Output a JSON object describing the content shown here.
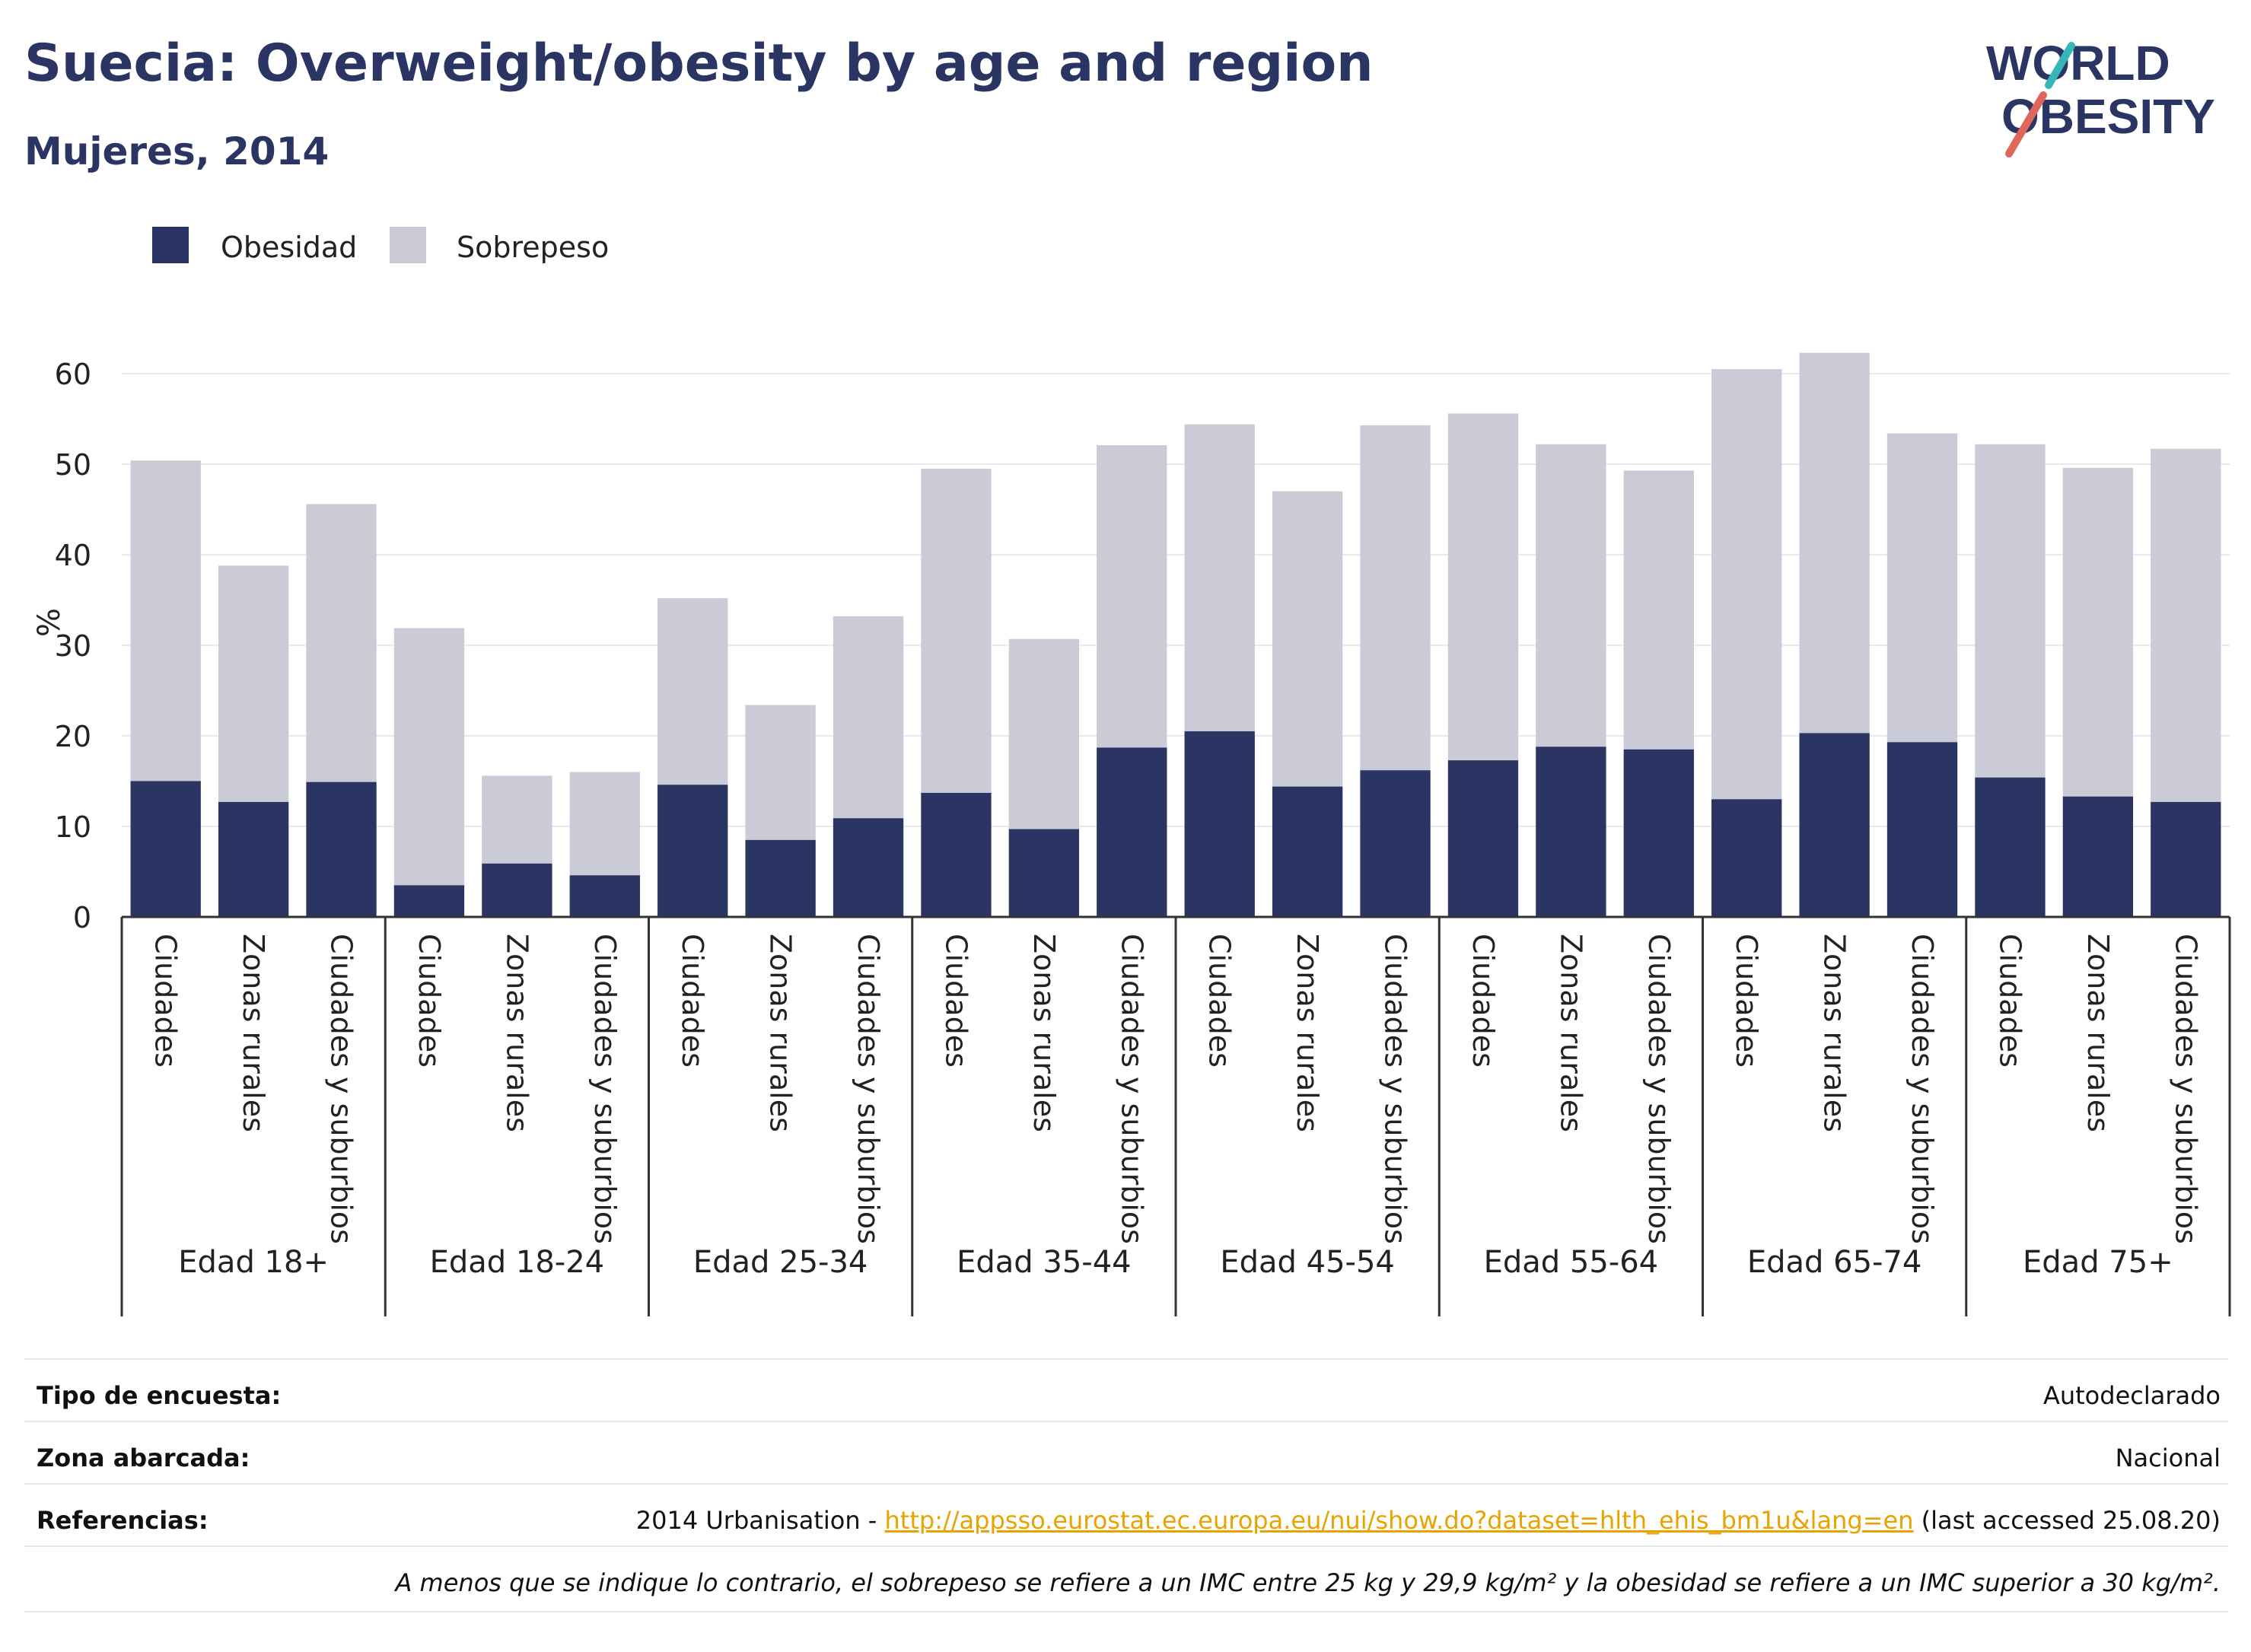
{
  "header": {
    "title": "Suecia: Overweight/obesity by age and region",
    "subtitle": "Mujeres, 2014",
    "logo_line1": "WORLD",
    "logo_line2": "OBESITY"
  },
  "colors": {
    "obesity": "#2b3563",
    "overweight": "#cacbd7",
    "text": "#222222",
    "title": "#2b3563",
    "link": "#e7a400"
  },
  "chart_data": {
    "type": "bar",
    "stacked": true,
    "ylabel": "%",
    "ylim": [
      0,
      65
    ],
    "yticks": [
      0,
      10,
      20,
      30,
      40,
      50,
      60
    ],
    "grid": true,
    "legend_position": "top-left",
    "groups": [
      "Edad 18+",
      "Edad 18-24",
      "Edad 25-34",
      "Edad 35-44",
      "Edad 45-54",
      "Edad 55-64",
      "Edad 65-74",
      "Edad 75+"
    ],
    "subcategories": [
      "Ciudades",
      "Zonas rurales",
      "Ciudades y suburbios"
    ],
    "series": [
      {
        "name": "Obesidad",
        "values": [
          15.0,
          12.7,
          14.9,
          3.5,
          5.9,
          4.6,
          14.6,
          8.5,
          10.9,
          13.7,
          9.7,
          18.7,
          20.5,
          14.4,
          16.2,
          17.3,
          18.8,
          18.5,
          13.0,
          20.3,
          19.3,
          15.4,
          13.3,
          12.7
        ]
      },
      {
        "name": "Sobrepeso",
        "values": [
          35.4,
          26.1,
          30.7,
          28.4,
          9.7,
          11.4,
          20.6,
          14.9,
          22.3,
          35.8,
          21.0,
          33.4,
          33.9,
          32.6,
          38.1,
          38.3,
          33.4,
          30.8,
          47.5,
          42.0,
          34.1,
          36.8,
          36.3,
          39.0
        ]
      }
    ]
  },
  "footer": {
    "survey_label": "Tipo de encuesta:",
    "survey_value": "Autodeclarado",
    "area_label": "Zona abarcada:",
    "area_value": "Nacional",
    "refs_label": "Referencias:",
    "refs_prefix": "2014 Urbanisation - ",
    "refs_link": "http://appsso.eurostat.ec.europa.eu/nui/show.do?dataset=hlth_ehis_bm1u&lang=en",
    "refs_suffix": " (last accessed 25.08.20)",
    "note": "A menos que se indique lo contrario, el sobrepeso se refiere a un IMC entre 25 kg y 29,9 kg/m² y la obesidad se refiere a un IMC superior a 30 kg/m²."
  }
}
